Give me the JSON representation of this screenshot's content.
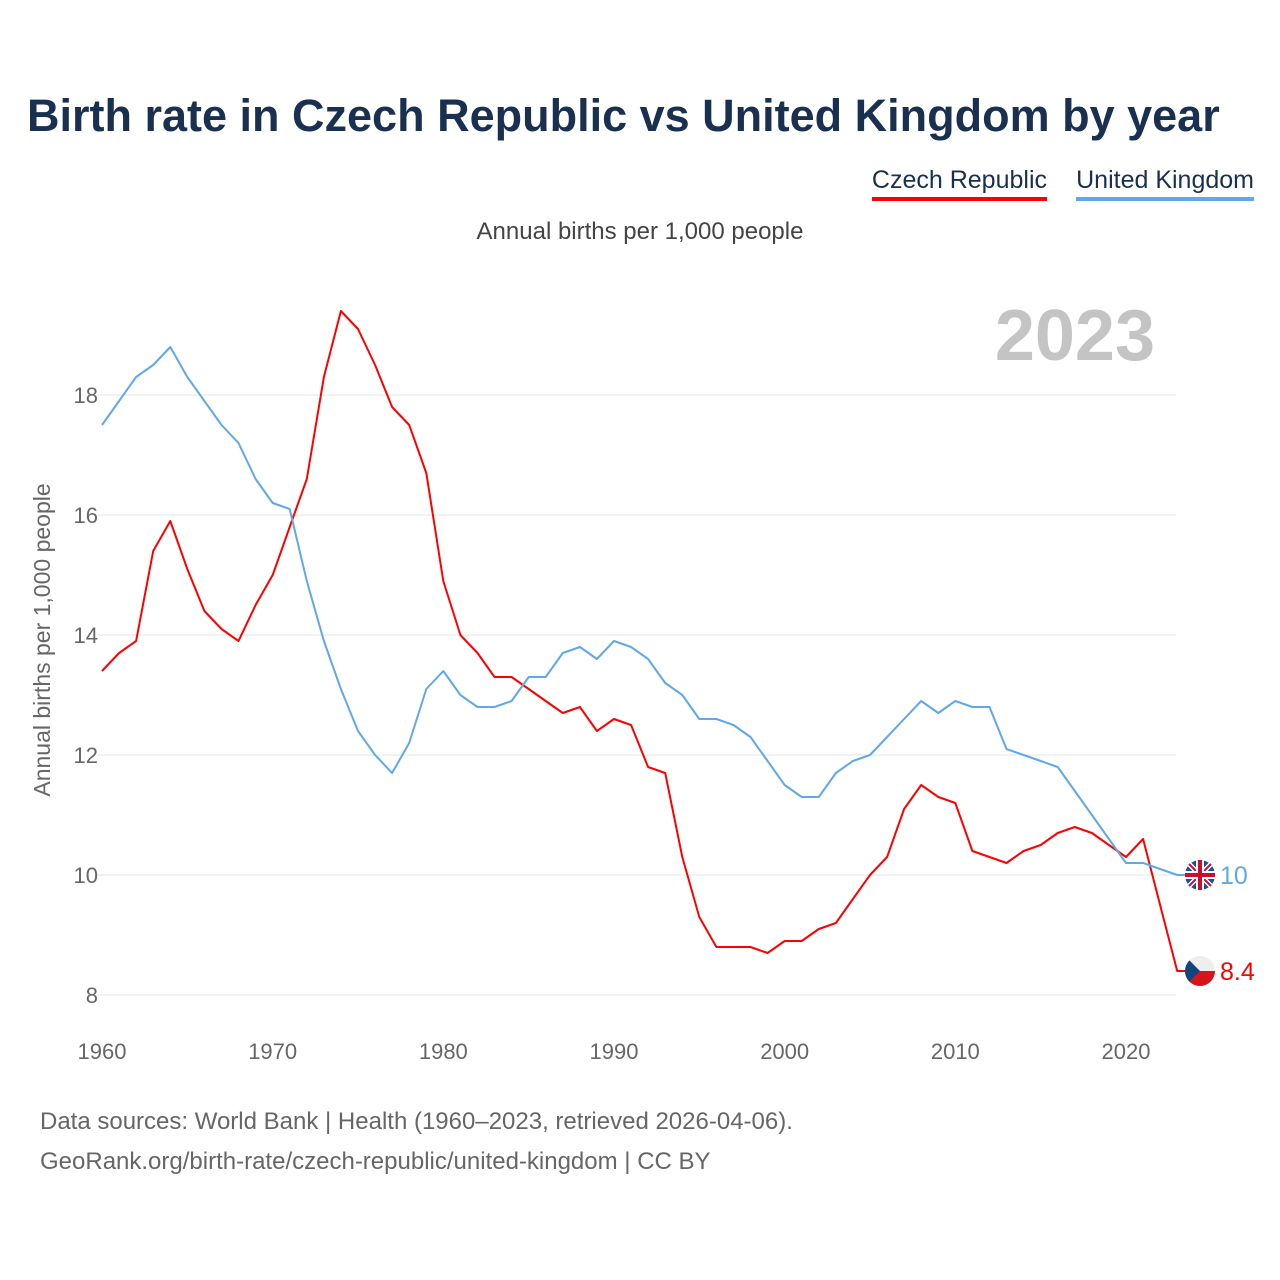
{
  "chart_data": {
    "type": "line",
    "title": "Birth rate in Czech Republic vs United Kingdom by year",
    "subtitle": "Annual births per 1,000 people",
    "ylabel": "Annual births per 1,000 people",
    "xlabel": "",
    "year_label": "2023",
    "ylim": [
      8,
      19.5
    ],
    "xlim": [
      1960,
      2023
    ],
    "yticks": [
      8,
      10,
      12,
      14,
      16,
      18
    ],
    "xticks": [
      1960,
      1970,
      1980,
      1990,
      2000,
      2010,
      2020
    ],
    "grid": true,
    "legend_position": "top-right",
    "x": [
      1960,
      1961,
      1962,
      1963,
      1964,
      1965,
      1966,
      1967,
      1968,
      1969,
      1970,
      1971,
      1972,
      1973,
      1974,
      1975,
      1976,
      1977,
      1978,
      1979,
      1980,
      1981,
      1982,
      1983,
      1984,
      1985,
      1986,
      1987,
      1988,
      1989,
      1990,
      1991,
      1992,
      1993,
      1994,
      1995,
      1996,
      1997,
      1998,
      1999,
      2000,
      2001,
      2002,
      2003,
      2004,
      2005,
      2006,
      2007,
      2008,
      2009,
      2010,
      2011,
      2012,
      2013,
      2014,
      2015,
      2016,
      2017,
      2018,
      2019,
      2020,
      2021,
      2022,
      2023
    ],
    "series": [
      {
        "name": "Czech Republic",
        "color": "#ff0000",
        "end_label": "8.4",
        "flag": "czech-flag",
        "values": [
          13.4,
          13.7,
          13.9,
          15.4,
          15.9,
          15.1,
          14.4,
          14.1,
          13.9,
          14.5,
          15.0,
          15.8,
          16.6,
          18.3,
          19.4,
          19.1,
          18.5,
          17.8,
          17.5,
          16.7,
          14.9,
          14.0,
          13.7,
          13.3,
          13.3,
          13.1,
          12.9,
          12.7,
          12.8,
          12.4,
          12.6,
          12.5,
          11.8,
          11.7,
          10.3,
          9.3,
          8.8,
          8.8,
          8.8,
          8.7,
          8.9,
          8.9,
          9.1,
          9.2,
          9.6,
          10.0,
          10.3,
          11.1,
          11.5,
          11.3,
          11.2,
          10.4,
          10.3,
          10.2,
          10.4,
          10.5,
          10.7,
          10.8,
          10.7,
          10.5,
          10.3,
          10.6,
          9.5,
          8.4
        ]
      },
      {
        "name": "United Kingdom",
        "color": "#60a8ec",
        "end_label": "10",
        "flag": "uk-flag",
        "values": [
          17.5,
          17.9,
          18.3,
          18.5,
          18.8,
          18.3,
          17.9,
          17.5,
          17.2,
          16.6,
          16.2,
          16.1,
          14.9,
          13.9,
          13.1,
          12.4,
          12.0,
          11.7,
          12.2,
          13.1,
          13.4,
          13.0,
          12.8,
          12.8,
          12.9,
          13.3,
          13.3,
          13.7,
          13.8,
          13.6,
          13.9,
          13.8,
          13.6,
          13.2,
          13.0,
          12.6,
          12.6,
          12.5,
          12.3,
          11.9,
          11.5,
          11.3,
          11.3,
          11.7,
          11.9,
          12.0,
          12.3,
          12.6,
          12.9,
          12.7,
          12.9,
          12.8,
          12.8,
          12.1,
          12.0,
          11.9,
          11.8,
          11.4,
          11.0,
          10.6,
          10.2,
          10.2,
          10.1,
          10.0
        ]
      }
    ]
  },
  "footer": {
    "line1": "Data sources: World Bank | Health (1960–2023, retrieved 2026-04-06).",
    "line2": "GeoRank.org/birth-rate/czech-republic/united-kingdom | CC BY"
  }
}
